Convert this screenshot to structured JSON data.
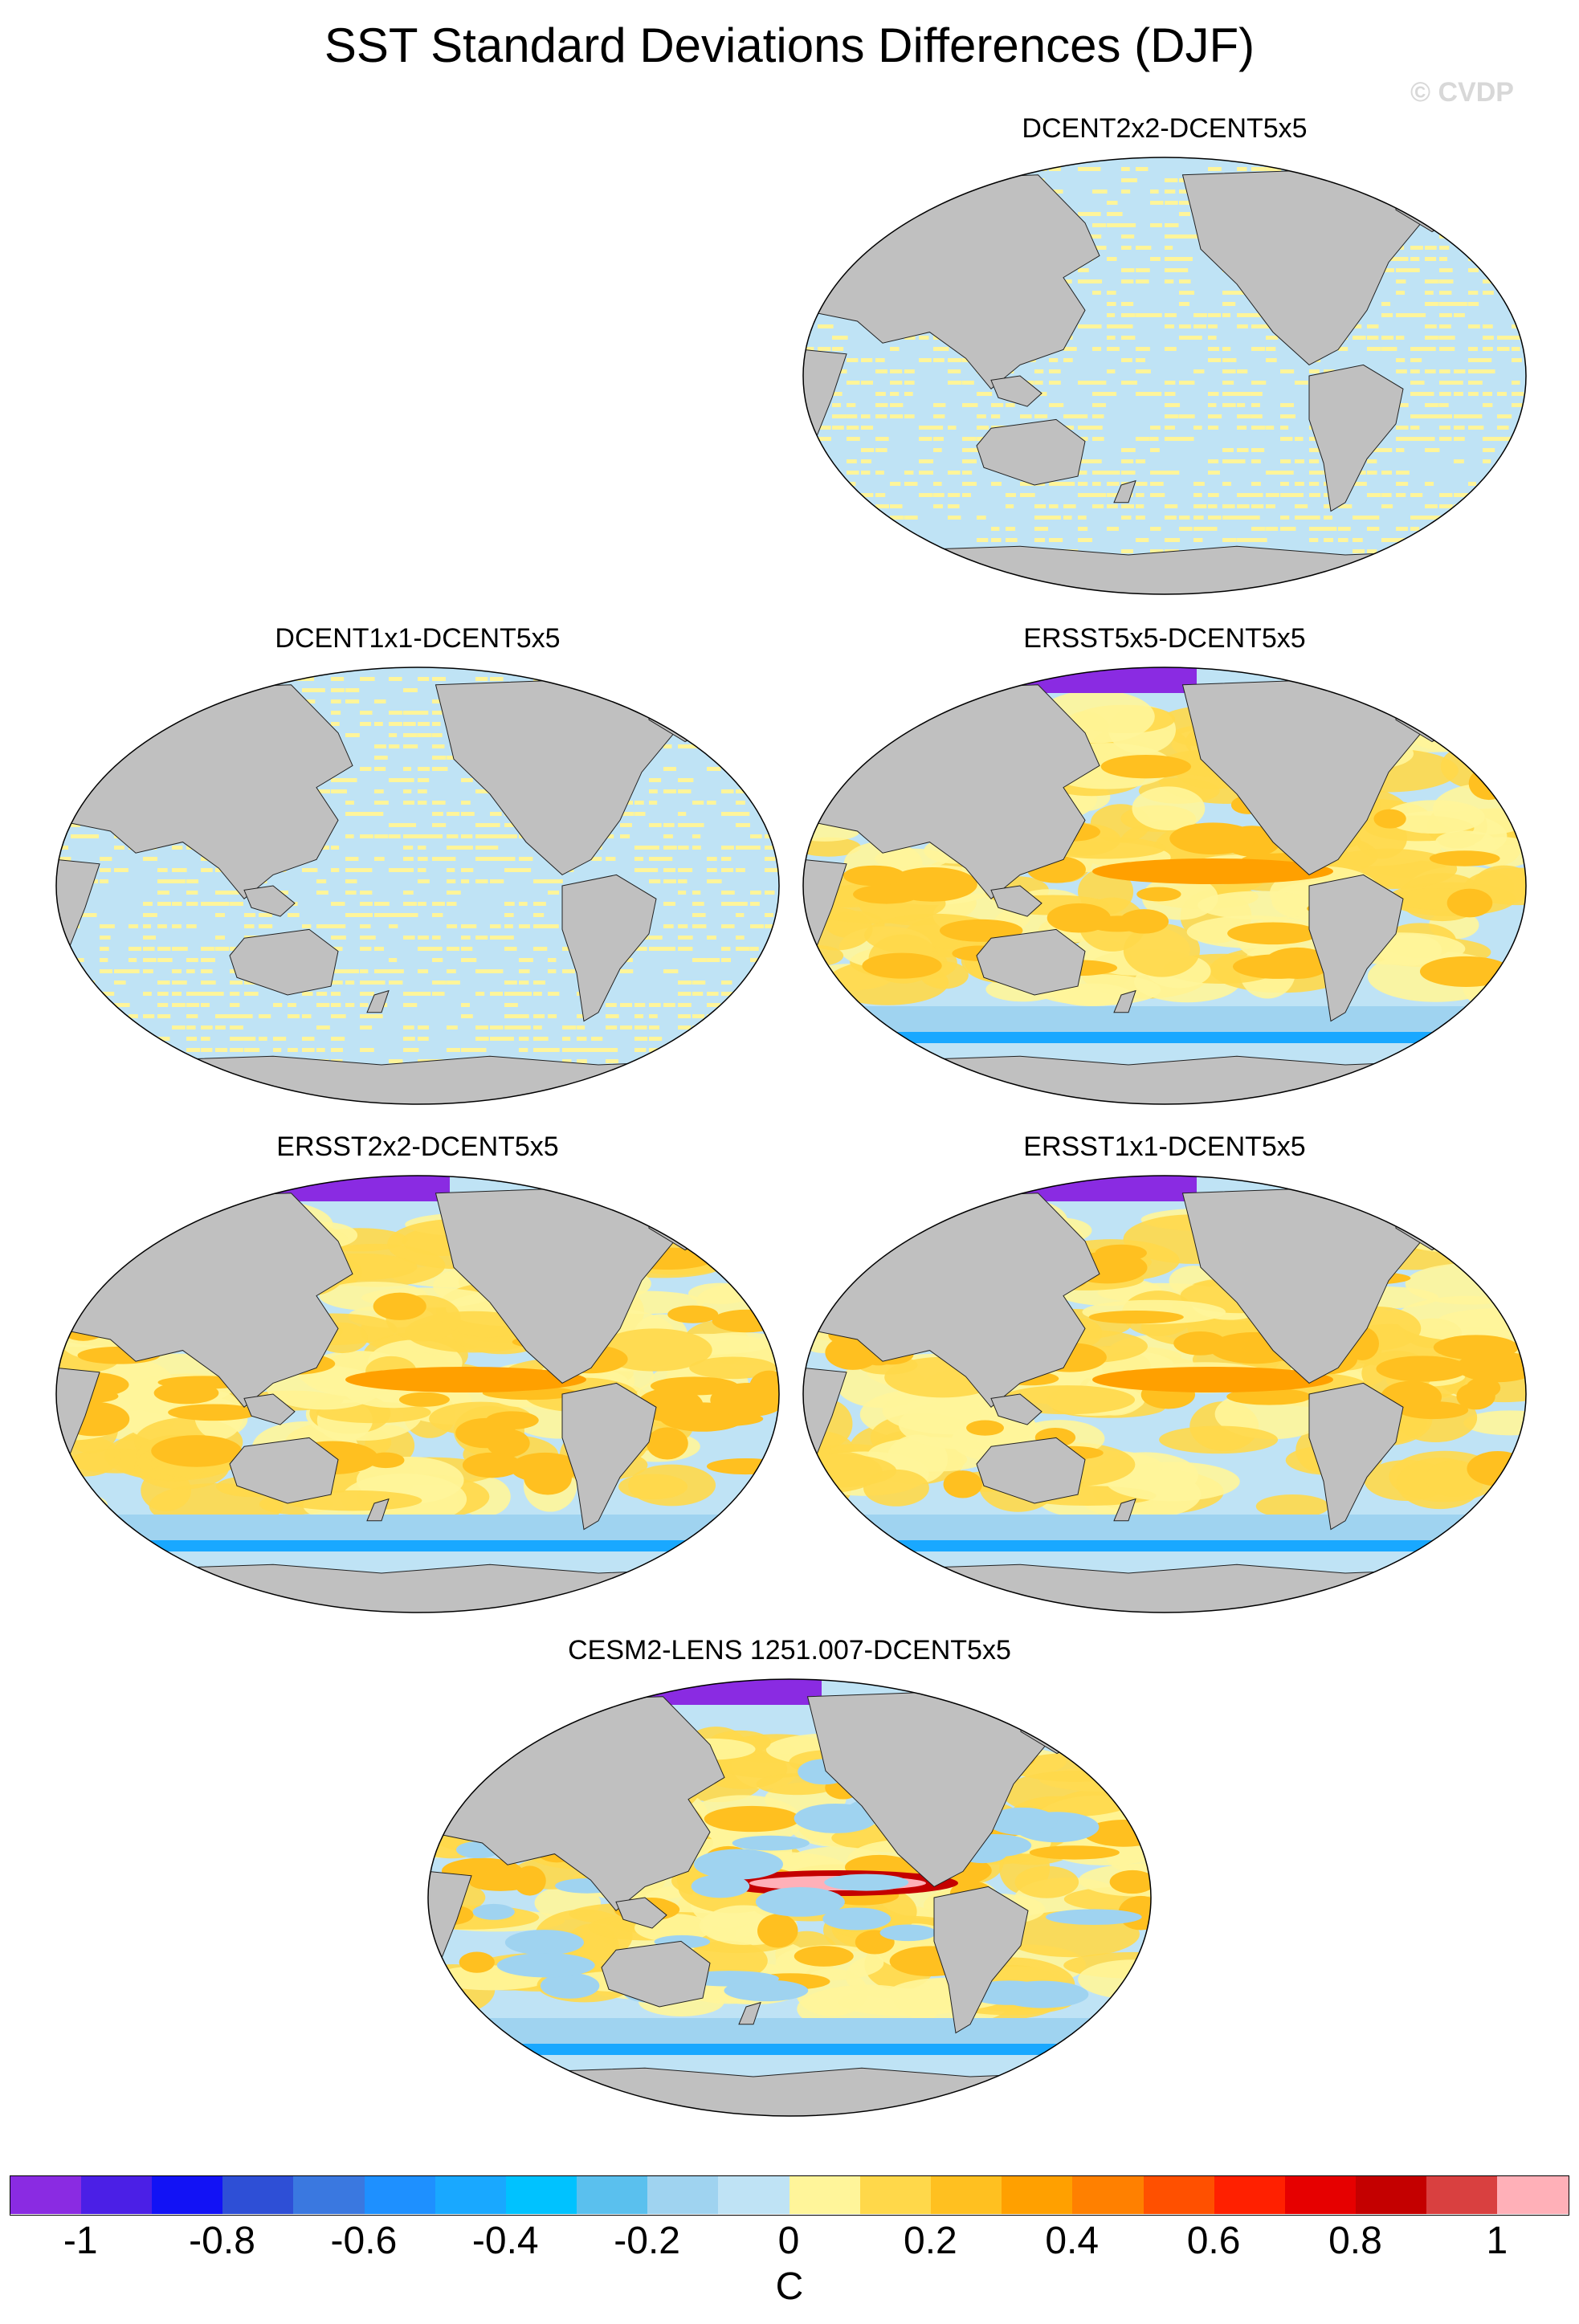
{
  "title": "SST Standard Deviations Differences (DJF)",
  "watermark": "© CVDP",
  "panels": [
    {
      "id": "p1",
      "label": "DCENT2x2-DCENT5x5",
      "pattern": "grid",
      "mean": 0.0
    },
    {
      "id": "p2",
      "label": "DCENT1x1-DCENT5x5",
      "pattern": "grid",
      "mean": 0.0
    },
    {
      "id": "p3",
      "label": "ERSST5x5-DCENT5x5",
      "pattern": "field",
      "mean": 0.25
    },
    {
      "id": "p4",
      "label": "ERSST2x2-DCENT5x5",
      "pattern": "field",
      "mean": 0.25
    },
    {
      "id": "p5",
      "label": "ERSST1x1-DCENT5x5",
      "pattern": "field",
      "mean": 0.25
    },
    {
      "id": "p6",
      "label": "CESM2-LENS 1251.007-DCENT5x5",
      "pattern": "field-strong",
      "mean": 0.2
    }
  ],
  "colorbar": {
    "unit": "C",
    "tick_labels": [
      "-1",
      "-0.8",
      "-0.6",
      "-0.4",
      "-0.2",
      "0",
      "0.2",
      "0.4",
      "0.6",
      "0.8",
      "1"
    ],
    "colors": [
      "#8a2be2",
      "#4b1fe6",
      "#1212f5",
      "#2e4fd6",
      "#3a78e0",
      "#1e90ff",
      "#19a8ff",
      "#00c2ff",
      "#5ac0ee",
      "#9fd3f0",
      "#bfe3f5",
      "#fff59a",
      "#ffd84a",
      "#ffc020",
      "#ffa000",
      "#ff8000",
      "#ff5000",
      "#ff2000",
      "#e60000",
      "#c40000",
      "#d94040",
      "#ffb0b8"
    ]
  },
  "map_colors": {
    "land": "#c0c0c0",
    "ocean_zero": "#bfe3f5",
    "sea_ice": "#8a2be2"
  }
}
